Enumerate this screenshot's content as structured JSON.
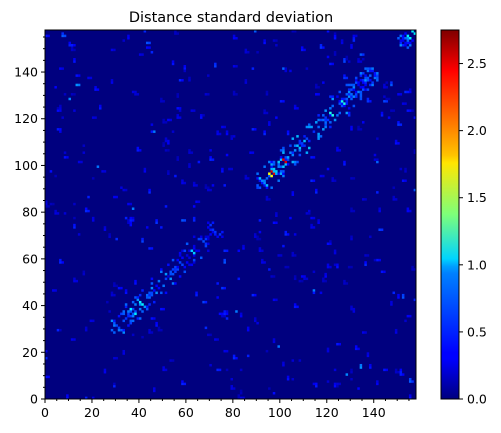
{
  "chart_data": {
    "type": "heatmap",
    "title": "Distance standard deviation",
    "xlabel": "",
    "ylabel": "",
    "n": 158,
    "xlim": [
      0,
      158
    ],
    "ylim": [
      0,
      158
    ],
    "x_ticks": [
      0,
      20,
      40,
      60,
      80,
      100,
      120,
      140
    ],
    "y_ticks": [
      0,
      20,
      40,
      60,
      80,
      100,
      120,
      140
    ],
    "colormap": "jet",
    "colorbar": {
      "vmin": 0.0,
      "vmax": 2.75,
      "ticks": [
        "0.0",
        "0.5",
        "1.0",
        "1.5",
        "2.0",
        "2.5"
      ],
      "tick_values": [
        0.0,
        0.5,
        1.0,
        1.5,
        2.0,
        2.5
      ]
    },
    "background_value": 0.0,
    "diagonal_blocks": [
      {
        "x": [
          28,
          52
        ],
        "typical": 0.6,
        "peak": 1.0
      },
      {
        "x": [
          52,
          72
        ],
        "typical": 0.45,
        "peak": 0.9
      },
      {
        "x": [
          90,
          112
        ],
        "typical": 0.7,
        "peak": 2.5
      },
      {
        "x": [
          112,
          140
        ],
        "typical": 0.6,
        "peak": 1.1
      },
      {
        "x": [
          150,
          158
        ],
        "typical": 0.6,
        "peak": 1.0
      }
    ],
    "grid": false
  }
}
